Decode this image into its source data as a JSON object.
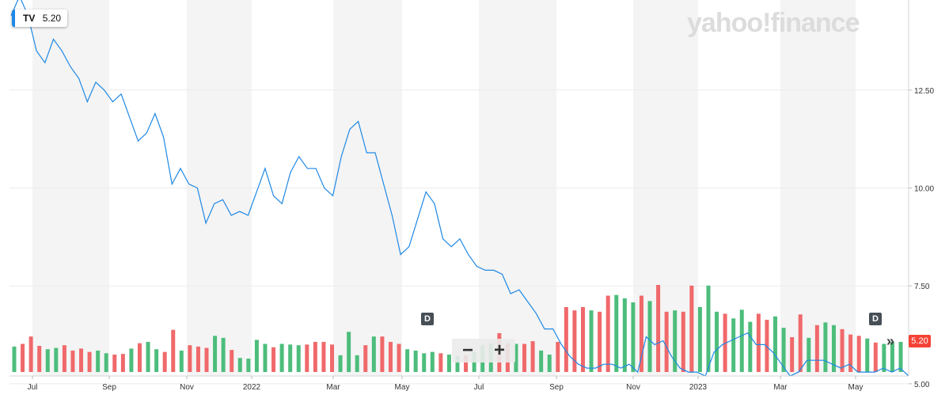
{
  "ticker": {
    "symbol": "TV",
    "last": "5.20",
    "accent_color": "#1e88e5"
  },
  "watermark": "yahoo!finance",
  "event_marker_label": "D",
  "zoom": {
    "out_label": "−",
    "in_label": "+"
  },
  "scroll_label": "»",
  "last_price_label": "5.20",
  "chart_data": {
    "type": "line",
    "ylim": [
      5.2,
      14.8
    ],
    "yticks": [
      5.0,
      7.5,
      10.0,
      12.5
    ],
    "ytick_labels": [
      "5.00",
      "7.50",
      "10.00",
      "12.50"
    ],
    "month_labels": [
      "Jul",
      "Sep",
      "Nov",
      "2022",
      "Mar",
      "May",
      "Jul",
      "Sep",
      "Nov",
      "2023",
      "Mar",
      "May"
    ],
    "line_color": "#1e88e5",
    "up_color": "#4dbd7c",
    "down_color": "#f0696b",
    "price": [
      14.4,
      14.9,
      14.4,
      13.5,
      13.2,
      13.8,
      13.5,
      13.1,
      12.8,
      12.2,
      12.7,
      12.5,
      12.2,
      12.4,
      11.8,
      11.2,
      11.4,
      11.9,
      11.3,
      10.1,
      10.5,
      10.1,
      10.0,
      9.1,
      9.6,
      9.7,
      9.3,
      9.4,
      9.3,
      9.9,
      10.5,
      9.8,
      9.6,
      10.4,
      10.8,
      10.5,
      10.5,
      10.0,
      9.8,
      10.8,
      11.5,
      11.7,
      10.9,
      10.9,
      10.1,
      9.3,
      8.3,
      8.5,
      9.2,
      9.9,
      9.6,
      8.7,
      8.5,
      8.7,
      8.3,
      8.0,
      7.9,
      7.9,
      7.8,
      7.3,
      7.4,
      7.1,
      6.8,
      6.4,
      6.4,
      6.0,
      5.7,
      5.5,
      5.4,
      5.4,
      5.5,
      5.5,
      5.4,
      5.5,
      5.3,
      6.2,
      6.0,
      6.1,
      5.7,
      5.4,
      5.3,
      5.3,
      5.2,
      5.8,
      6.0,
      6.1,
      6.2,
      6.3,
      6.0,
      6.0,
      5.8,
      5.5,
      5.2,
      5.3,
      5.6,
      5.6,
      5.6,
      5.5,
      5.4,
      5.5,
      5.3,
      5.3,
      5.3,
      5.4,
      5.3,
      5.4,
      5.2
    ],
    "volume": [
      0.38,
      0.42,
      0.53,
      0.39,
      0.34,
      0.36,
      0.4,
      0.32,
      0.35,
      0.3,
      0.32,
      0.28,
      0.26,
      0.27,
      0.35,
      0.43,
      0.45,
      0.34,
      0.3,
      0.63,
      0.32,
      0.4,
      0.38,
      0.36,
      0.54,
      0.51,
      0.33,
      0.21,
      0.2,
      0.48,
      0.42,
      0.37,
      0.42,
      0.41,
      0.4,
      0.41,
      0.45,
      0.45,
      0.41,
      0.25,
      0.6,
      0.25,
      0.4,
      0.53,
      0.53,
      0.45,
      0.42,
      0.34,
      0.32,
      0.28,
      0.3,
      0.28,
      0.26,
      0.24,
      0.25,
      0.3,
      0.4,
      0.43,
      0.58,
      0.43,
      0.42,
      0.42,
      0.46,
      0.32,
      0.26,
      0.45,
      0.97,
      0.92,
      0.97,
      0.92,
      0.9,
      1.14,
      1.15,
      1.1,
      1.04,
      1.14,
      1.06,
      1.3,
      0.9,
      0.92,
      0.9,
      1.29,
      0.97,
      1.29,
      0.9,
      0.87,
      0.8,
      0.93,
      0.75,
      0.87,
      0.78,
      0.83,
      0.66,
      0.52,
      0.86,
      0.51,
      0.7,
      0.74,
      0.7,
      0.64,
      0.56,
      0.54,
      0.5,
      0.44,
      0.42,
      0.45,
      0.45
    ],
    "volume_dir": [
      "up",
      "down",
      "down",
      "down",
      "up",
      "up",
      "down",
      "down",
      "down",
      "down",
      "up",
      "up",
      "down",
      "down",
      "up",
      "down",
      "up",
      "up",
      "down",
      "down",
      "up",
      "down",
      "down",
      "down",
      "up",
      "up",
      "down",
      "up",
      "up",
      "up",
      "up",
      "down",
      "up",
      "up",
      "up",
      "down",
      "down",
      "down",
      "down",
      "up",
      "up",
      "up",
      "down",
      "up",
      "down",
      "down",
      "down",
      "up",
      "up",
      "up",
      "up",
      "down",
      "up",
      "up",
      "down",
      "up",
      "up",
      "up",
      "down",
      "down",
      "up",
      "down",
      "down",
      "up",
      "up",
      "down",
      "down",
      "down",
      "down",
      "up",
      "down",
      "down",
      "up",
      "up",
      "up",
      "down",
      "up",
      "down",
      "down",
      "up",
      "down",
      "down",
      "up",
      "up",
      "up",
      "down",
      "up",
      "up",
      "up",
      "down",
      "down",
      "up",
      "up",
      "down",
      "down",
      "up",
      "down",
      "up",
      "up",
      "down",
      "down",
      "down",
      "up",
      "down",
      "up",
      "up",
      "up"
    ]
  }
}
